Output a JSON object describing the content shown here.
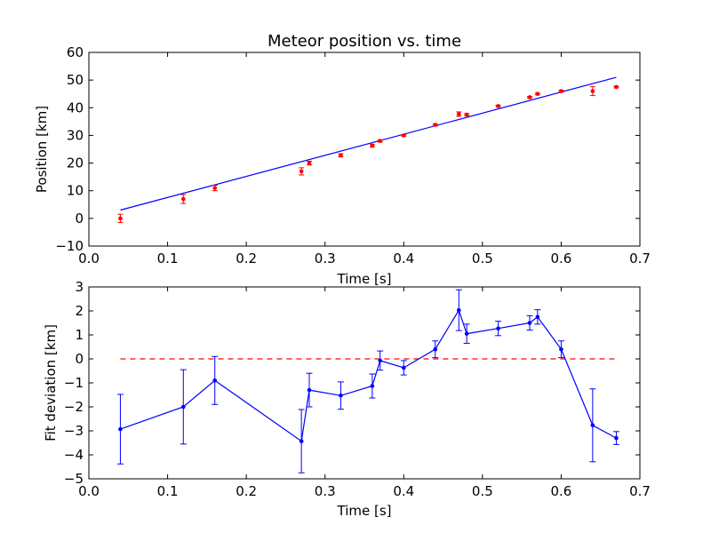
{
  "chart_data": [
    {
      "type": "scatter",
      "title": "Meteor position vs. time",
      "xlabel": "Time [s]",
      "ylabel": "Position [km]",
      "xlim": [
        0.0,
        0.7
      ],
      "ylim": [
        -10,
        60
      ],
      "xticks": [
        "0.0",
        "0.1",
        "0.2",
        "0.3",
        "0.4",
        "0.5",
        "0.6",
        "0.7"
      ],
      "yticks": [
        "−10",
        "0",
        "10",
        "20",
        "30",
        "40",
        "50",
        "60"
      ],
      "grid": false,
      "colors": {
        "points": "#ff0000",
        "fit": "#0000ff"
      },
      "points": [
        {
          "x": 0.04,
          "y": 0.0,
          "err": 1.5
        },
        {
          "x": 0.12,
          "y": 7.0,
          "err": 1.6
        },
        {
          "x": 0.16,
          "y": 11.0,
          "err": 1.0
        },
        {
          "x": 0.27,
          "y": 17.0,
          "err": 1.3
        },
        {
          "x": 0.28,
          "y": 20.0,
          "err": 0.7
        },
        {
          "x": 0.32,
          "y": 22.8,
          "err": 0.6
        },
        {
          "x": 0.36,
          "y": 26.3,
          "err": 0.5
        },
        {
          "x": 0.37,
          "y": 28.0,
          "err": 0.4
        },
        {
          "x": 0.4,
          "y": 30.0,
          "err": 0.3
        },
        {
          "x": 0.44,
          "y": 33.8,
          "err": 0.35
        },
        {
          "x": 0.47,
          "y": 37.7,
          "err": 0.8
        },
        {
          "x": 0.48,
          "y": 37.5,
          "err": 0.4
        },
        {
          "x": 0.52,
          "y": 40.6,
          "err": 0.3
        },
        {
          "x": 0.56,
          "y": 43.8,
          "err": 0.3
        },
        {
          "x": 0.57,
          "y": 45.0,
          "err": 0.3
        },
        {
          "x": 0.6,
          "y": 46.0,
          "err": 0.35
        },
        {
          "x": 0.64,
          "y": 46.0,
          "err": 1.6
        },
        {
          "x": 0.67,
          "y": 47.5,
          "err": 0.3
        }
      ],
      "fit_line": [
        {
          "x": 0.04,
          "y": 3.0
        },
        {
          "x": 0.67,
          "y": 51.0
        }
      ]
    },
    {
      "type": "line",
      "xlabel": "Time [s]",
      "ylabel": "Fit deviation [km]",
      "xlim": [
        0.0,
        0.7
      ],
      "ylim": [
        -5,
        3
      ],
      "xticks": [
        "0.0",
        "0.1",
        "0.2",
        "0.3",
        "0.4",
        "0.5",
        "0.6",
        "0.7"
      ],
      "yticks": [
        "−5",
        "−4",
        "−3",
        "−2",
        "−1",
        "0",
        "1",
        "2",
        "3"
      ],
      "grid": false,
      "colors": {
        "series": "#0000ff",
        "zero_line": "#ff0000"
      },
      "points": [
        {
          "x": 0.04,
          "y": -2.93,
          "err": 1.45
        },
        {
          "x": 0.12,
          "y": -2.0,
          "err": 1.55
        },
        {
          "x": 0.16,
          "y": -0.9,
          "err": 1.0
        },
        {
          "x": 0.27,
          "y": -3.43,
          "err": 1.32
        },
        {
          "x": 0.28,
          "y": -1.3,
          "err": 0.7
        },
        {
          "x": 0.32,
          "y": -1.53,
          "err": 0.57
        },
        {
          "x": 0.36,
          "y": -1.13,
          "err": 0.5
        },
        {
          "x": 0.37,
          "y": -0.07,
          "err": 0.4
        },
        {
          "x": 0.4,
          "y": -0.37,
          "err": 0.3
        },
        {
          "x": 0.44,
          "y": 0.4,
          "err": 0.35
        },
        {
          "x": 0.47,
          "y": 2.03,
          "err": 0.85
        },
        {
          "x": 0.48,
          "y": 1.05,
          "err": 0.4
        },
        {
          "x": 0.52,
          "y": 1.27,
          "err": 0.3
        },
        {
          "x": 0.56,
          "y": 1.5,
          "err": 0.3
        },
        {
          "x": 0.57,
          "y": 1.75,
          "err": 0.3
        },
        {
          "x": 0.6,
          "y": 0.4,
          "err": 0.35
        },
        {
          "x": 0.64,
          "y": -2.77,
          "err": 1.52
        },
        {
          "x": 0.67,
          "y": -3.3,
          "err": 0.27
        }
      ],
      "zero_line": [
        {
          "x": 0.04,
          "y": 0
        },
        {
          "x": 0.67,
          "y": 0
        }
      ]
    }
  ]
}
